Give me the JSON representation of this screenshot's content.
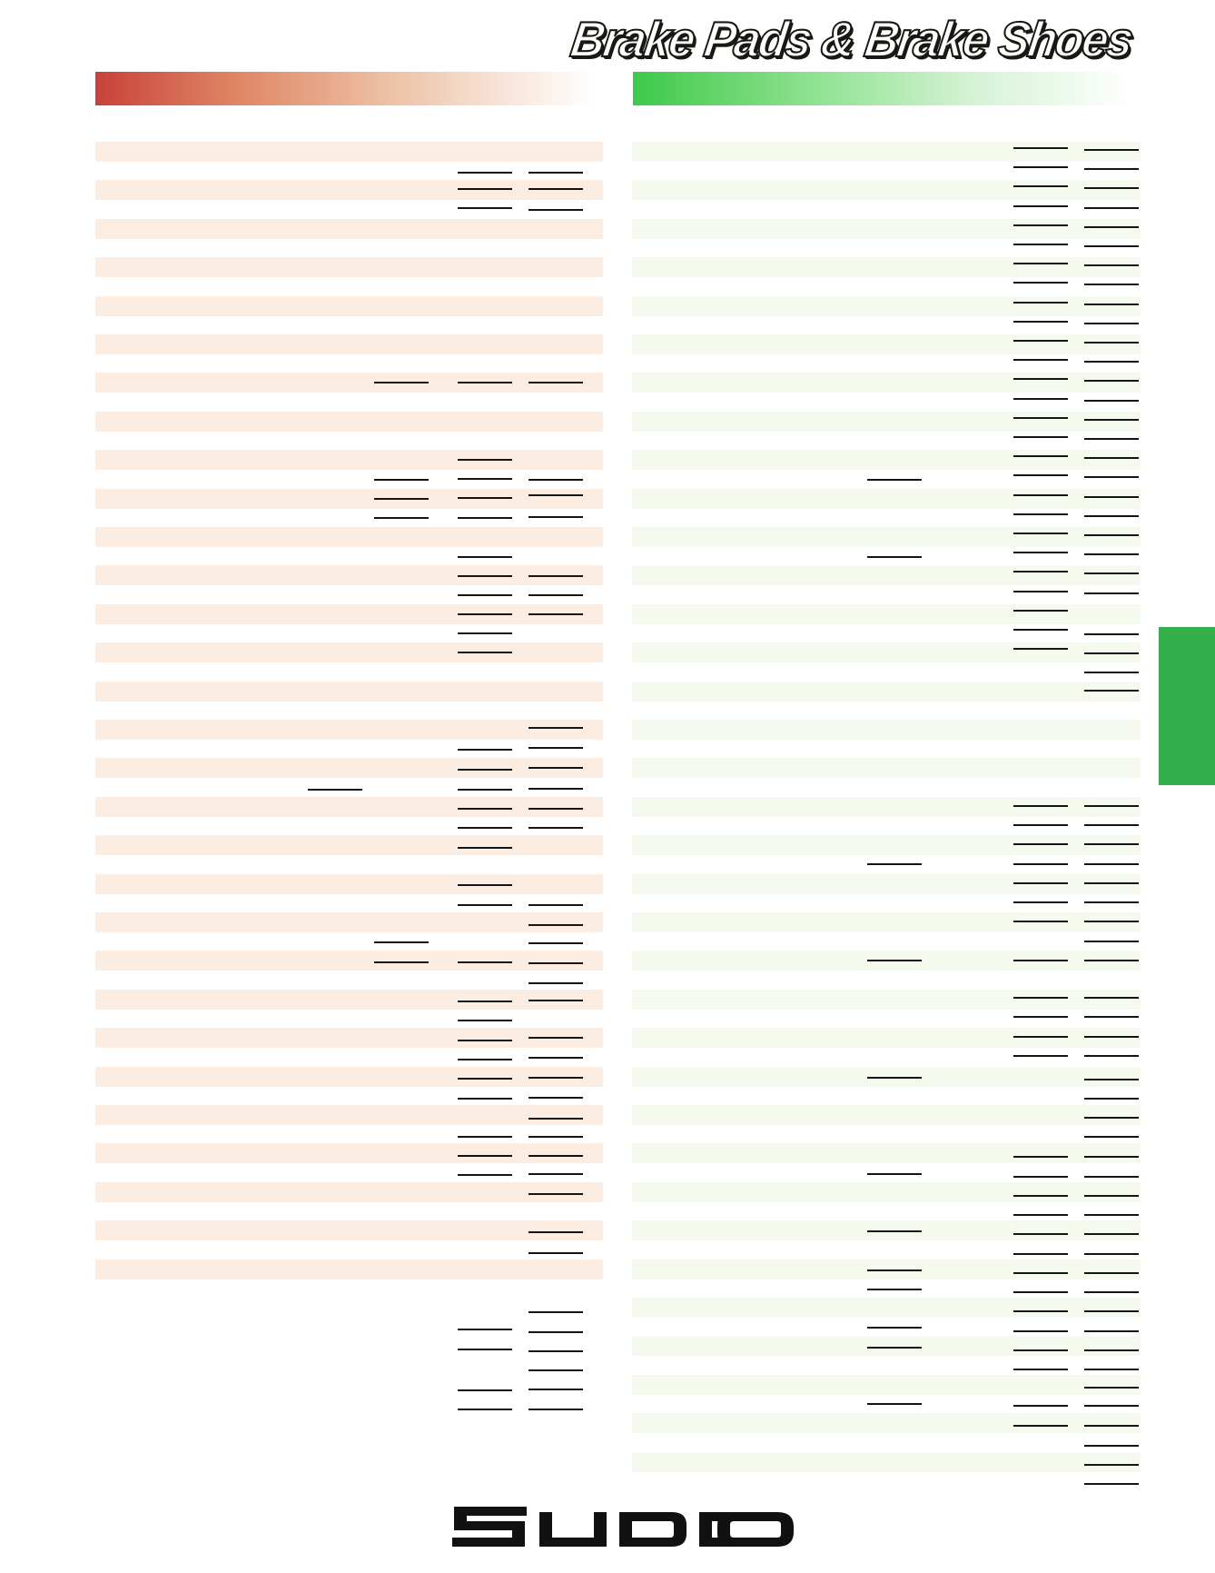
{
  "header": {
    "title": "Brake Pads & Brake Shoes"
  },
  "colors": {
    "left_band": "#c8423a",
    "right_band": "#3ec94a",
    "left_stripe": "#fbede2",
    "right_stripe": "#f4fbee",
    "side_tab": "#33b04b"
  },
  "icons": {
    "logo": "sudco-logo"
  }
}
